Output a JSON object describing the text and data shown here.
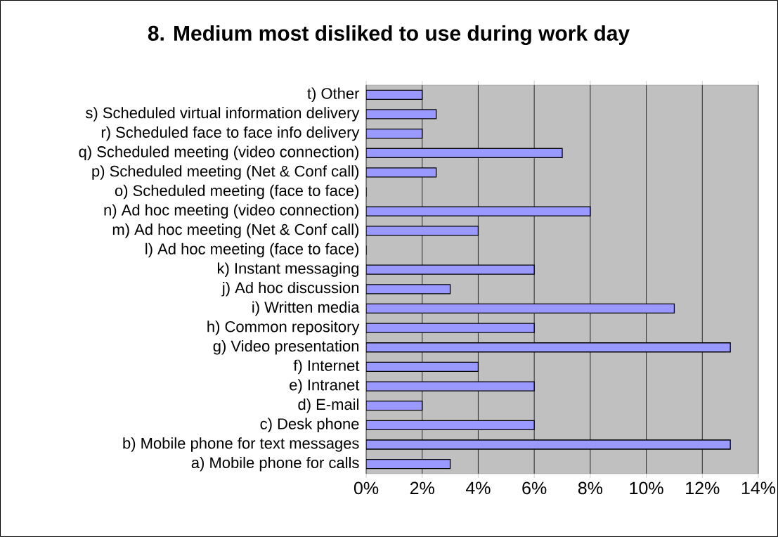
{
  "chart_data": {
    "type": "bar",
    "orientation": "horizontal",
    "title": "8. Medium most disliked to use during work day",
    "categories": [
      "t) Other",
      "s) Scheduled virtual information delivery",
      "r) Scheduled face to face info delivery",
      "q) Scheduled meeting (video connection)",
      "p) Scheduled meeting (Net & Conf call)",
      "o) Scheduled meeting (face to face)",
      "n) Ad hoc meeting (video connection)",
      "m) Ad hoc meeting (Net & Conf call)",
      "l) Ad hoc meeting (face to face)",
      "k) Instant messaging",
      "j) Ad hoc discussion",
      "i) Written media",
      "h) Common repository",
      "g) Video presentation",
      "f) Internet",
      "e) Intranet",
      "d) E-mail",
      "c) Desk phone",
      "b) Mobile phone for text messages",
      "a) Mobile phone for calls"
    ],
    "values": [
      2,
      2.5,
      2,
      7,
      2.5,
      0,
      8,
      4,
      0,
      6,
      3,
      11,
      6,
      13,
      4,
      6,
      2,
      6,
      13,
      3
    ],
    "color": "#9999ff",
    "xlim": [
      0,
      14
    ],
    "xticks": [
      {
        "value": 0,
        "label": "0%"
      },
      {
        "value": 2,
        "label": "2%"
      },
      {
        "value": 4,
        "label": "4%"
      },
      {
        "value": 6,
        "label": "6%"
      },
      {
        "value": 8,
        "label": "8%"
      },
      {
        "value": 10,
        "label": "10%"
      },
      {
        "value": 12,
        "label": "12%"
      },
      {
        "value": 14,
        "label": "14%"
      }
    ],
    "grid": "x"
  }
}
